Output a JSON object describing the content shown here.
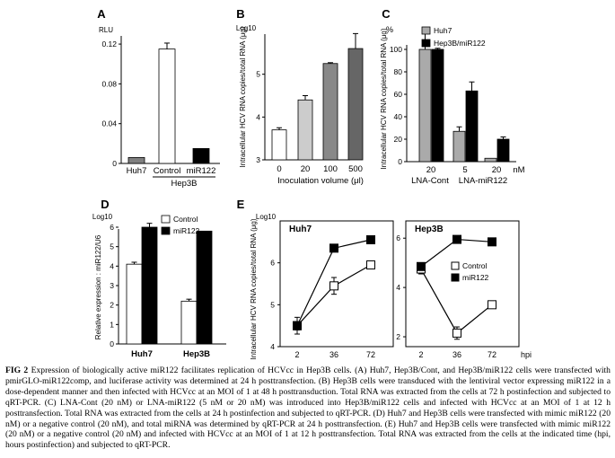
{
  "panels": {
    "A": {
      "letter": "A",
      "unit": "RLU"
    },
    "B": {
      "letter": "B",
      "unit": "Log10"
    },
    "C": {
      "letter": "C",
      "unit": "%"
    },
    "D": {
      "letter": "D",
      "unit": "Log10"
    },
    "E": {
      "letter": "E",
      "unit": "Log10"
    }
  },
  "chart_data": [
    {
      "panel": "A",
      "type": "bar",
      "categories": [
        "Huh7",
        "Control",
        "miR122"
      ],
      "group_label": "Hep3B",
      "values": [
        0.006,
        0.115,
        0.015
      ],
      "errors": [
        0,
        0.006,
        0
      ],
      "colors": [
        "#808080",
        "#ffffff",
        "#000000"
      ],
      "ylim": [
        0,
        0.13
      ],
      "yticks": [
        "0",
        "0.04",
        "0.08",
        "0.12"
      ],
      "ylabel": "RLU",
      "xlabel": ""
    },
    {
      "panel": "B",
      "type": "bar",
      "categories": [
        "0",
        "20",
        "100",
        "500"
      ],
      "values": [
        3.7,
        4.4,
        5.25,
        5.6
      ],
      "errors": [
        0.05,
        0.1,
        0.02,
        0.35
      ],
      "colors": [
        "#ffffff",
        "#cccccc",
        "#888888",
        "#666666"
      ],
      "ylim": [
        3,
        6
      ],
      "yticks": [
        "3",
        "4",
        "5"
      ],
      "ylabel": "Intracellular HCV RNA copies/total RNA (μg)",
      "ylabel_unit": "Log10",
      "xlabel": "Inoculation volume (μl)"
    },
    {
      "panel": "C",
      "type": "bar",
      "categories": [
        "20",
        "5",
        "20"
      ],
      "unit_label": "nM",
      "group_labels": [
        "LNA-Cont",
        "LNA-miR122"
      ],
      "series": [
        {
          "name": "Huh7",
          "values": [
            100,
            27,
            3
          ],
          "errors": [
            15,
            4,
            0
          ],
          "color": "#aaaaaa"
        },
        {
          "name": "Hep3B/miR122",
          "values": [
            100,
            63,
            20
          ],
          "errors": [
            1,
            8,
            2
          ],
          "color": "#000000"
        }
      ],
      "ylim": [
        0,
        120
      ],
      "yticks": [
        "0",
        "20",
        "40",
        "60",
        "80",
        "100"
      ],
      "ylabel": "Intracellular HCV RNA copies/total RNA (μg)",
      "ylabel_unit": "%"
    },
    {
      "panel": "D",
      "type": "bar",
      "categories": [
        "Huh7",
        "Hep3B"
      ],
      "series": [
        {
          "name": "Control",
          "values": [
            4.1,
            2.2
          ],
          "errors": [
            0.1,
            0.1
          ],
          "color": "#ffffff"
        },
        {
          "name": "miR122",
          "values": [
            6.0,
            5.8
          ],
          "errors": [
            0.2,
            0
          ],
          "color": "#000000"
        }
      ],
      "ylim": [
        0,
        6.6
      ],
      "yticks": [
        "0",
        "1",
        "2",
        "3",
        "4",
        "5",
        "6"
      ],
      "ylabel": "Relative expression : miR122/U6",
      "ylabel_unit": "Log10"
    },
    {
      "panel": "E",
      "type": "line",
      "subpanels": [
        {
          "title": "Huh7",
          "x": [
            "2",
            "36",
            "72"
          ],
          "series": [
            {
              "name": "Control",
              "values": [
                4.5,
                5.45,
                5.95
              ],
              "errors": [
                0.2,
                0.2,
                0.05
              ],
              "marker": "open-square"
            },
            {
              "name": "miR122",
              "values": [
                4.5,
                6.35,
                6.55
              ],
              "errors": [
                0.1,
                0.05,
                0.03
              ],
              "marker": "filled-square"
            }
          ]
        },
        {
          "title": "Hep3B",
          "x": [
            "2",
            "36",
            "72"
          ],
          "series": [
            {
              "name": "Control",
              "values": [
                4.75,
                2.15,
                3.3
              ],
              "errors": [
                0.2,
                0.25,
                0.05
              ],
              "marker": "open-square"
            },
            {
              "name": "miR122",
              "values": [
                4.85,
                5.95,
                5.85
              ],
              "errors": [
                0.1,
                0.05,
                0.05
              ],
              "marker": "filled-square"
            }
          ]
        }
      ],
      "ylim_left": [
        4,
        7
      ],
      "yticks_left": [
        "4",
        "5",
        "6"
      ],
      "ylim_right": [
        1.6,
        6.7
      ],
      "yticks_right": [
        "2",
        "4",
        "6"
      ],
      "ylabel": "Intracellular HCV RNA copies/total RNA (μg)",
      "ylabel_unit": "Log10",
      "xlabel": "hpi",
      "legend": [
        "Control",
        "miR122"
      ]
    }
  ],
  "caption": {
    "label": "FIG 2",
    "text": "Expression of biologically active miR122 facilitates replication of HCVcc in Hep3B cells. (A) Huh7, Hep3B/Cont, and Hep3B/miR122 cells were transfected with pmirGLO-miR122comp, and luciferase activity was determined at 24 h posttransfection. (B) Hep3B cells were transduced with the lentiviral vector expressing miR122 in a dose-dependent manner and then infected with HCVcc at an MOI of 1 at 48 h posttransduction. Total RNA was extracted from the cells at 72 h postinfection and subjected to qRT-PCR. (C) LNA-Cont (20 nM) or LNA-miR122 (5 nM or 20 nM) was introduced into Hep3B/miR122 cells and infected with HCVcc at an MOI of 1 at 12 h posttransfection. Total RNA was extracted from the cells at 24 h postinfection and subjected to qRT-PCR. (D) Huh7 and Hep3B cells were transfected with mimic miR122 (20 nM) or a negative control (20 nM), and total miRNA was determined by qRT-PCR at 24 h posttransfection. (E) Huh7 and Hep3B cells were transfected with mimic miR122 (20 nM) or a negative control (20 nM) and infected with HCVcc at an MOI of 1 at 12 h posttransfection. Total RNA was extracted from the cells at the indicated time (hpi, hours postinfection) and subjected to qRT-PCR."
  }
}
